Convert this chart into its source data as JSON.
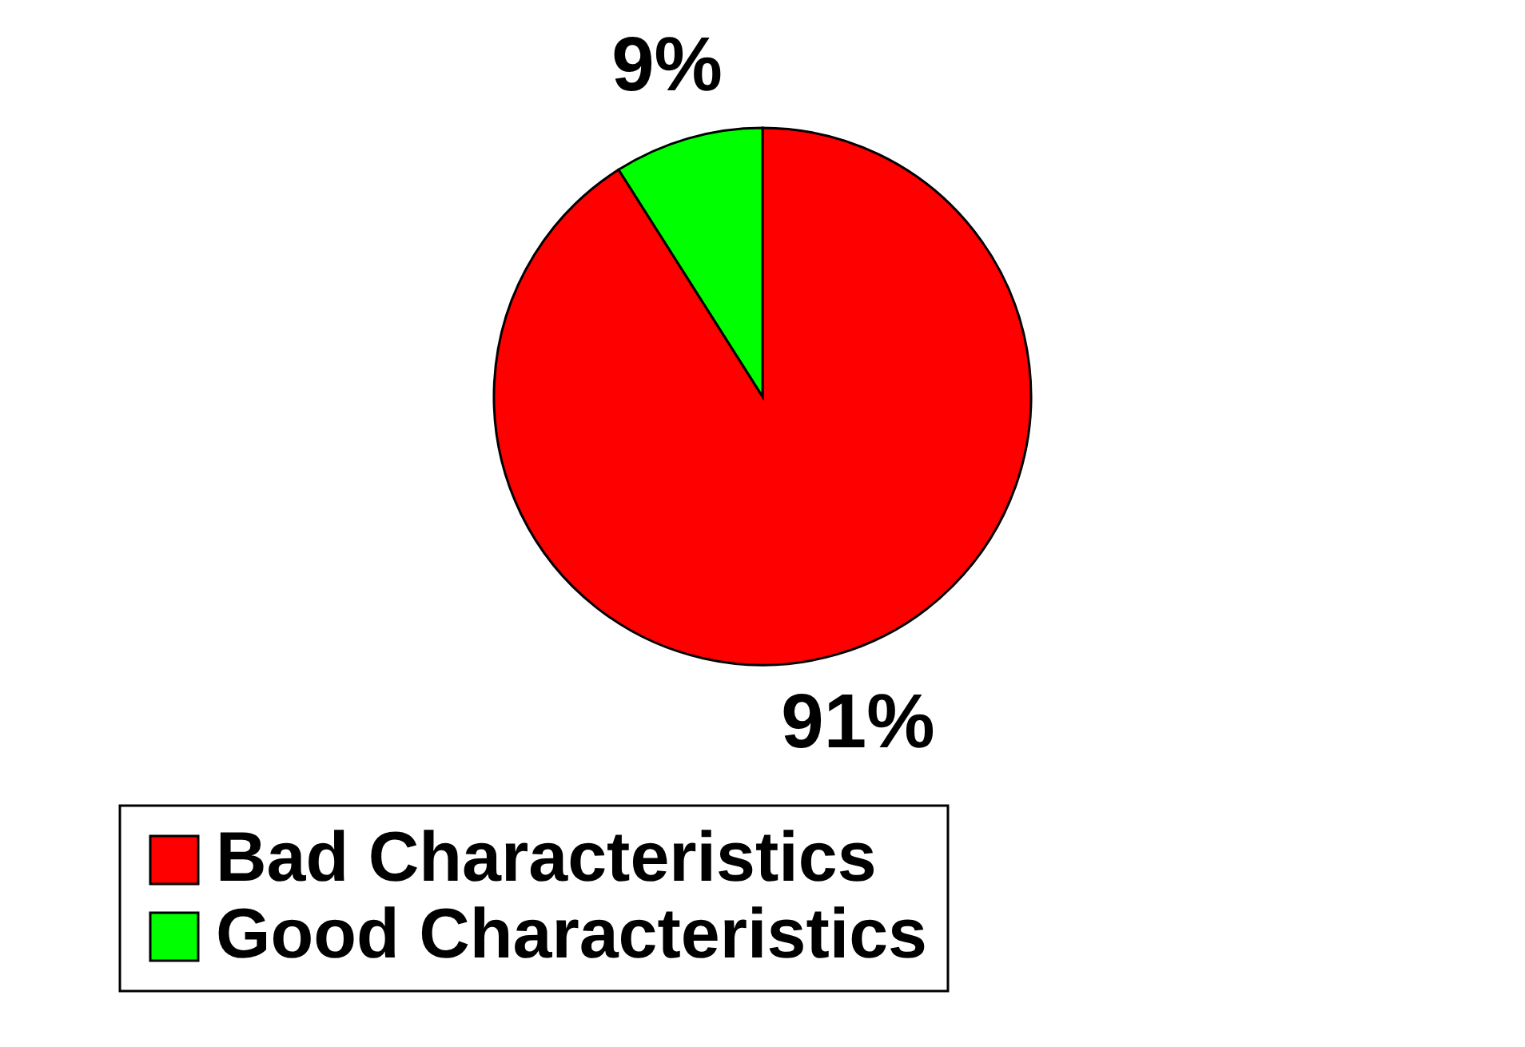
{
  "chart_data": {
    "type": "pie",
    "categories": [
      "Bad Characteristics",
      "Good Characteristics"
    ],
    "values": [
      91,
      9
    ],
    "colors": [
      "#ff0000",
      "#00ff00"
    ],
    "value_labels": [
      "91%",
      "9%"
    ],
    "legend": "bottom"
  }
}
